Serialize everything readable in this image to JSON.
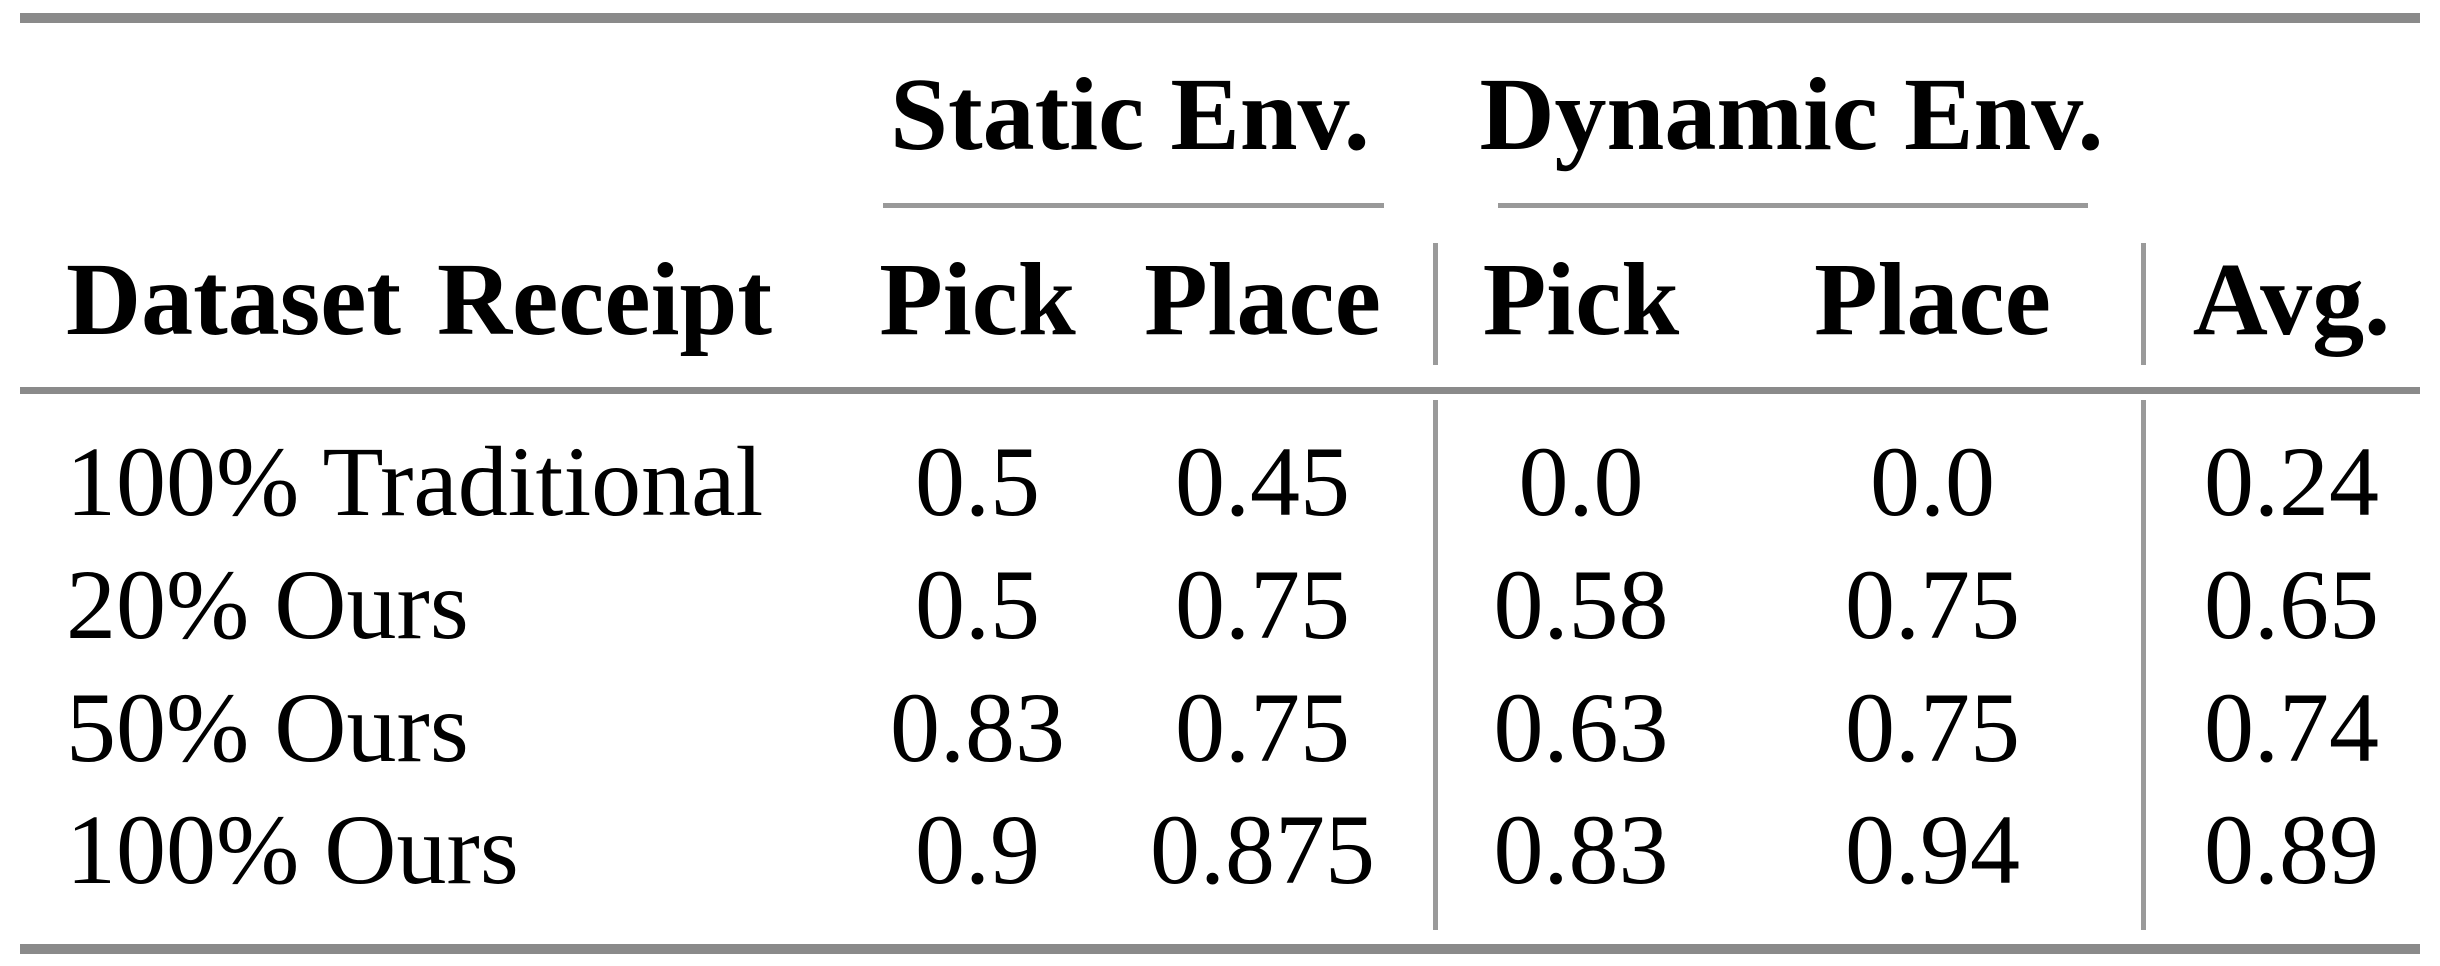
{
  "table": {
    "title_semantics": "results-table-pick-place-success-rates",
    "header": {
      "dataset_label": "Dataset Receipt",
      "static_group": "Static Env.",
      "dynamic_group": "Dynamic Env.",
      "static_pick": "Pick",
      "static_place": "Place",
      "dynamic_pick": "Pick",
      "dynamic_place": "Place",
      "avg": "Avg."
    },
    "rows": [
      {
        "dataset": "100% Traditional",
        "static_pick": "0.5",
        "static_place": "0.45",
        "dynamic_pick": "0.0",
        "dynamic_place": "0.0",
        "avg": "0.24"
      },
      {
        "dataset": "20% Ours",
        "static_pick": "0.5",
        "static_place": "0.75",
        "dynamic_pick": "0.58",
        "dynamic_place": "0.75",
        "avg": "0.65"
      },
      {
        "dataset": "50% Ours",
        "static_pick": "0.83",
        "static_place": "0.75",
        "dynamic_pick": "0.63",
        "dynamic_place": "0.75",
        "avg": "0.74"
      },
      {
        "dataset": "100% Ours",
        "static_pick": "0.9",
        "static_place": "0.875",
        "dynamic_pick": "0.83",
        "dynamic_place": "0.94",
        "avg": "0.89"
      }
    ],
    "colors": {
      "heavy_rule": "#8a8a8a",
      "light_rule": "#999999",
      "vertical_rule": "#9a9a9a",
      "text": "#000000",
      "background": "#ffffff"
    }
  }
}
